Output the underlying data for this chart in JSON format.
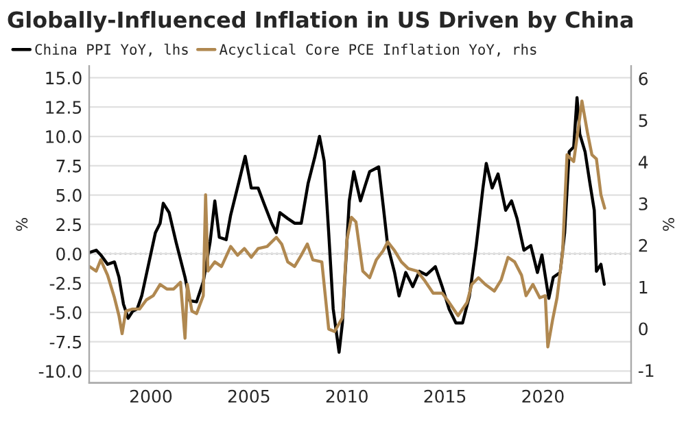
{
  "chart_data": {
    "type": "line",
    "title": "Globally-Influenced Inflation in US Driven by China",
    "ylabel": "%",
    "y2label": "%",
    "xlim": [
      1996.85,
      2024.5
    ],
    "xticks": [
      2000,
      2005,
      2010,
      2015,
      2020
    ],
    "ylim": [
      -11,
      16
    ],
    "yticks": [
      {
        "value": -10,
        "label": "-10.0"
      },
      {
        "value": -7.5,
        "label": "-7.5"
      },
      {
        "value": -5,
        "label": "-5.0"
      },
      {
        "value": -2.5,
        "label": "-2.5"
      },
      {
        "value": 0,
        "label": "0.0"
      },
      {
        "value": 2.5,
        "label": "2.5"
      },
      {
        "value": 5,
        "label": "5.0"
      },
      {
        "value": 7.5,
        "label": "7.5"
      },
      {
        "value": 10,
        "label": "10.0"
      },
      {
        "value": 12.5,
        "label": "12.5"
      },
      {
        "value": 15,
        "label": "15.0"
      }
    ],
    "y2lim": [
      -1.3,
      6.3
    ],
    "y2ticks": [
      -1,
      0,
      1,
      2,
      3,
      4,
      5,
      6
    ],
    "grid": "y",
    "legend": "top",
    "line_style": "solid",
    "marker": "none",
    "ref_lines": [
      {
        "axis": "y",
        "value": 0,
        "color": "#999999",
        "line_style": "dotted"
      }
    ],
    "series": [
      {
        "name": "China PPI YoY, lhs",
        "color": "#000000",
        "x": [
          1996.86,
          1997.21,
          1997.44,
          1997.79,
          1998.14,
          1998.37,
          1998.6,
          1998.84,
          1999.07,
          1999.3,
          1999.53,
          1999.88,
          2000.23,
          2000.47,
          2000.63,
          2000.93,
          2001.28,
          2001.74,
          2001.98,
          2002.33,
          2002.67,
          2003.02,
          2003.26,
          2003.49,
          2003.84,
          2004.07,
          2004.53,
          2004.81,
          2005.12,
          2005.47,
          2005.81,
          2006.16,
          2006.4,
          2006.58,
          2006.98,
          2007.33,
          2007.67,
          2008.02,
          2008.37,
          2008.6,
          2008.84,
          2009.07,
          2009.3,
          2009.6,
          2009.77,
          2010.0,
          2010.12,
          2010.35,
          2010.69,
          2010.93,
          2011.16,
          2011.39,
          2011.62,
          2011.85,
          2012.08,
          2012.43,
          2012.66,
          2013.0,
          2013.36,
          2013.7,
          2014.05,
          2014.51,
          2014.86,
          2015.21,
          2015.56,
          2015.9,
          2016.25,
          2016.6,
          2016.94,
          2017.11,
          2017.41,
          2017.71,
          2018.1,
          2018.4,
          2018.68,
          2019.03,
          2019.38,
          2019.72,
          2019.95,
          2020.3,
          2020.53,
          2020.88,
          2021.11,
          2021.34,
          2021.57,
          2021.74,
          2021.88,
          2022.15,
          2022.38,
          2022.62,
          2022.73,
          2022.96,
          2023.13
        ],
        "values": [
          0.1,
          0.3,
          -0.1,
          -0.9,
          -0.7,
          -2.0,
          -4.3,
          -5.5,
          -4.9,
          -4.7,
          -3.6,
          -0.9,
          1.8,
          2.6,
          4.3,
          3.5,
          1.0,
          -2.0,
          -4.0,
          -4.1,
          -2.4,
          1.0,
          4.5,
          1.4,
          1.2,
          3.3,
          6.4,
          8.3,
          5.6,
          5.6,
          4.1,
          2.6,
          1.8,
          3.5,
          3.0,
          2.6,
          2.6,
          6.0,
          8.3,
          10.0,
          7.9,
          1.8,
          -4.7,
          -8.4,
          -5.9,
          1.0,
          4.5,
          7.0,
          4.5,
          5.8,
          7.0,
          7.2,
          7.4,
          4.1,
          0.7,
          -1.6,
          -3.6,
          -1.6,
          -2.8,
          -1.5,
          -1.8,
          -1.1,
          -2.8,
          -4.7,
          -5.9,
          -5.9,
          -3.6,
          0.7,
          5.6,
          7.7,
          5.6,
          6.8,
          3.7,
          4.5,
          3.0,
          0.3,
          0.7,
          -1.6,
          -0.1,
          -3.8,
          -2.0,
          -1.6,
          1.8,
          8.7,
          9.1,
          13.3,
          10.2,
          8.7,
          6.2,
          3.7,
          -1.5,
          -0.9,
          -2.6
        ]
      },
      {
        "name": "Acyclical Core PCE Inflation YoY, rhs",
        "color": "#b08850",
        "axis": "y2",
        "x": [
          1996.86,
          1997.21,
          1997.44,
          1997.79,
          1998.14,
          1998.37,
          1998.53,
          1998.72,
          1999.07,
          1999.42,
          1999.77,
          2000.12,
          2000.47,
          2000.81,
          2001.16,
          2001.51,
          2001.74,
          2001.86,
          2002.09,
          2002.33,
          2002.67,
          2002.79,
          2002.91,
          2003.26,
          2003.6,
          2004.07,
          2004.42,
          2004.77,
          2005.12,
          2005.47,
          2005.93,
          2006.4,
          2006.67,
          2006.98,
          2007.33,
          2007.67,
          2007.98,
          2008.26,
          2008.72,
          2009.07,
          2009.37,
          2009.77,
          2010.0,
          2010.23,
          2010.46,
          2010.81,
          2011.16,
          2011.5,
          2011.85,
          2012.08,
          2012.43,
          2012.78,
          2013.13,
          2013.59,
          2013.94,
          2014.4,
          2014.86,
          2015.21,
          2015.67,
          2016.13,
          2016.37,
          2016.71,
          2017.06,
          2017.52,
          2017.87,
          2018.22,
          2018.56,
          2018.91,
          2019.14,
          2019.49,
          2019.84,
          2020.12,
          2020.25,
          2020.49,
          2020.72,
          2021.0,
          2021.23,
          2021.57,
          2021.81,
          2021.99,
          2022.27,
          2022.5,
          2022.73,
          2022.96,
          2023.15
        ],
        "values": [
          1.49,
          1.38,
          1.65,
          1.28,
          0.74,
          0.31,
          -0.12,
          0.42,
          0.47,
          0.47,
          0.69,
          0.79,
          1.06,
          0.95,
          0.95,
          1.11,
          -0.23,
          1.06,
          0.42,
          0.36,
          0.79,
          3.21,
          1.38,
          1.6,
          1.49,
          1.97,
          1.76,
          1.92,
          1.71,
          1.92,
          1.97,
          2.19,
          2.03,
          1.6,
          1.49,
          1.76,
          2.03,
          1.65,
          1.6,
          -0.01,
          -0.07,
          0.26,
          2.13,
          2.67,
          2.56,
          1.38,
          1.22,
          1.65,
          1.87,
          2.08,
          1.87,
          1.6,
          1.44,
          1.38,
          1.17,
          0.85,
          0.85,
          0.63,
          0.31,
          0.63,
          1.06,
          1.22,
          1.06,
          0.9,
          1.17,
          1.71,
          1.6,
          1.28,
          0.79,
          1.06,
          0.74,
          0.79,
          -0.44,
          0.2,
          0.74,
          1.81,
          4.17,
          4.01,
          4.82,
          5.46,
          4.71,
          4.17,
          4.07,
          3.21,
          2.89
        ]
      }
    ]
  }
}
